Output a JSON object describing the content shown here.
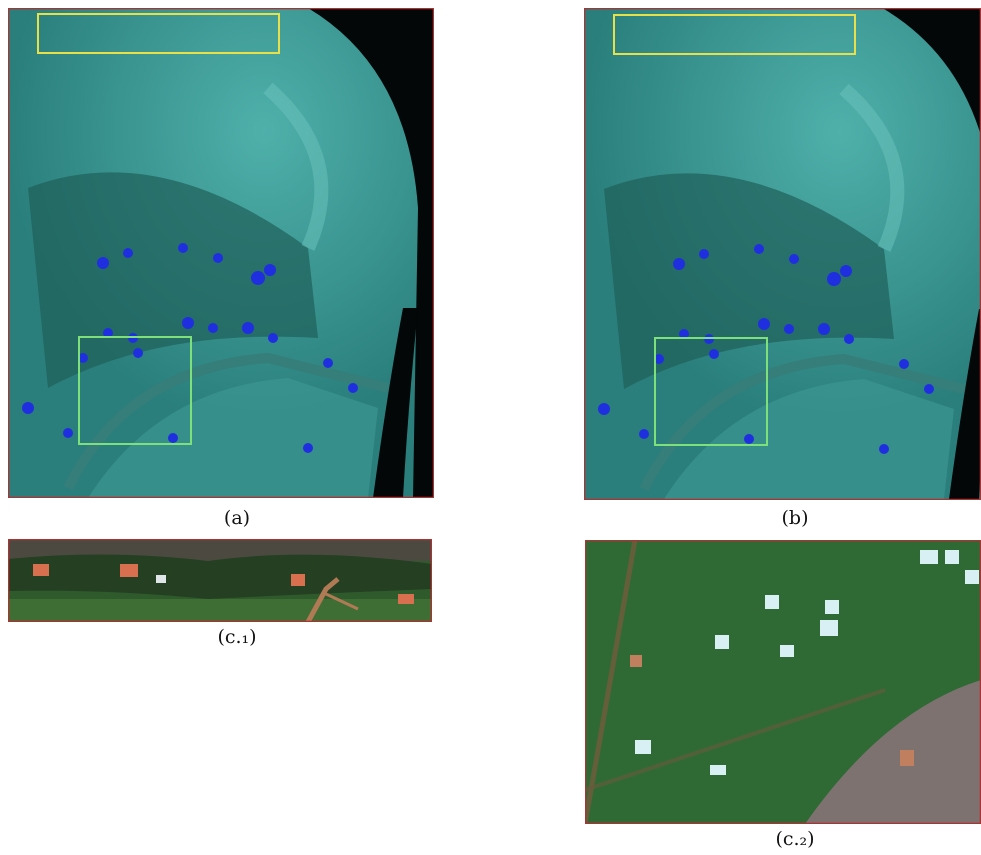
{
  "captions": {
    "a": "(a)",
    "b": "(b)",
    "c1": "(c.₁)",
    "c2": "(c.₂)"
  }
}
